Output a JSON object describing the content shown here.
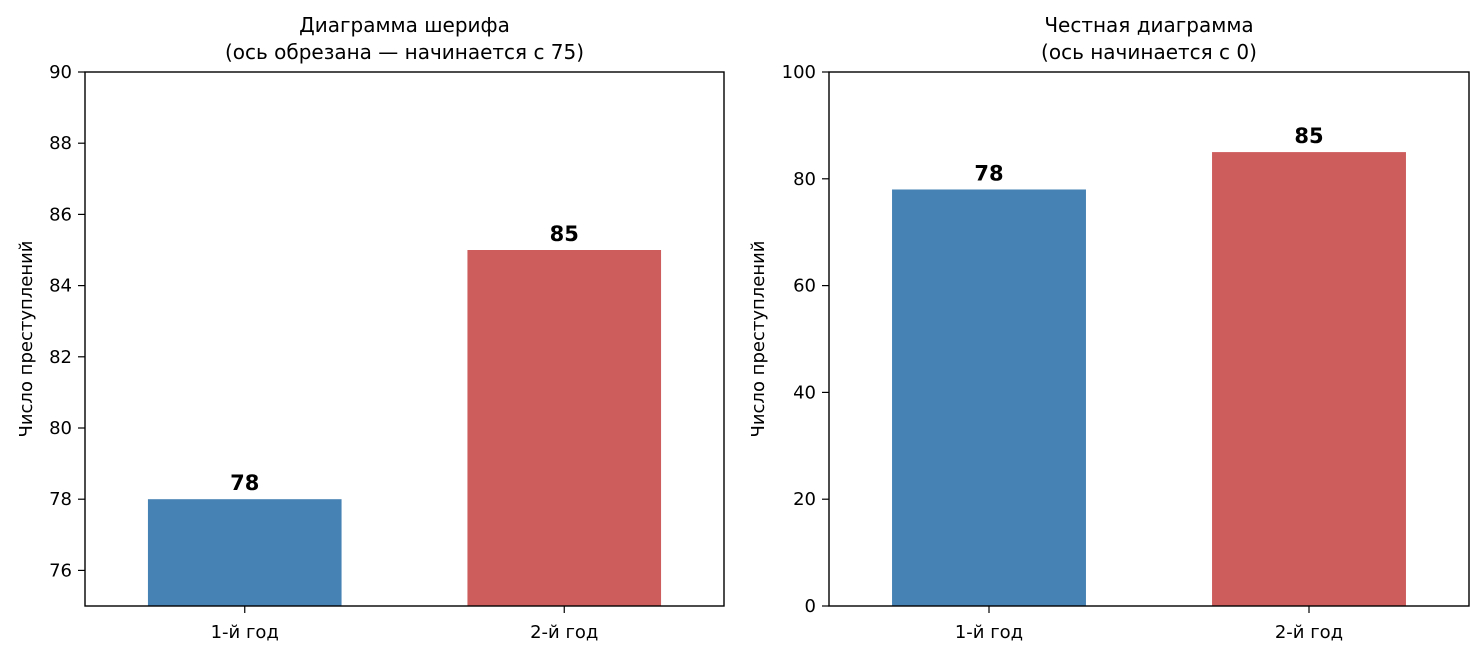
{
  "chart_data": [
    {
      "type": "bar",
      "title": "Диаграмма шерифа\n(ось обрезана — начинается с 75)",
      "categories": [
        "1-й год",
        "2-й год"
      ],
      "values": [
        78,
        85
      ],
      "colors": [
        "#4682b4",
        "#cd5c5c"
      ],
      "xlabel": "",
      "ylabel": "Число преступлений",
      "ylim": [
        75,
        90
      ],
      "yticks": [
        76,
        78,
        80,
        82,
        84,
        86,
        88,
        90
      ],
      "grid": false
    },
    {
      "type": "bar",
      "title": "Честная диаграмма\n(ось начинается с 0)",
      "categories": [
        "1-й год",
        "2-й год"
      ],
      "values": [
        78,
        85
      ],
      "colors": [
        "#4682b4",
        "#cd5c5c"
      ],
      "xlabel": "",
      "ylabel": "Число преступлений",
      "ylim": [
        0,
        100
      ],
      "yticks": [
        0,
        20,
        40,
        60,
        80,
        100
      ],
      "grid": false
    }
  ]
}
